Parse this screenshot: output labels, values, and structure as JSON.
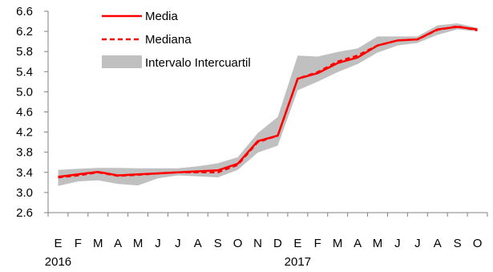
{
  "colors": {
    "series": "#ff0000",
    "band": "#c0c0c0",
    "axis": "#808080"
  },
  "legend": {
    "media": "Media",
    "mediana": "Mediana",
    "iqr": "Intervalo Intercuartil"
  },
  "chart_data": {
    "type": "line",
    "categories": [
      "E",
      "F",
      "M",
      "A",
      "M",
      "J",
      "J",
      "A",
      "S",
      "O",
      "N",
      "D",
      "E",
      "F",
      "M",
      "A",
      "M",
      "J",
      "J",
      "A",
      "S",
      "O"
    ],
    "year_labels": [
      {
        "label": "2016",
        "index": 0
      },
      {
        "label": "2017",
        "index": 12
      }
    ],
    "ylim": [
      2.6,
      6.6
    ],
    "yticks": [
      "2.6",
      "3.0",
      "3.4",
      "3.8",
      "4.2",
      "4.6",
      "5.0",
      "5.4",
      "5.8",
      "6.2",
      "6.6"
    ],
    "legend_position": "top-left",
    "grid": false,
    "series": [
      {
        "name": "Media",
        "style": "solid",
        "values": [
          3.31,
          3.36,
          3.41,
          3.34,
          3.36,
          3.38,
          3.4,
          3.42,
          3.44,
          3.57,
          4.02,
          4.13,
          5.26,
          5.37,
          5.57,
          5.68,
          5.92,
          6.02,
          6.04,
          6.24,
          6.29,
          6.24
        ]
      },
      {
        "name": "Mediana",
        "style": "dashed",
        "values": [
          3.3,
          3.34,
          3.4,
          3.33,
          3.35,
          3.38,
          3.4,
          3.4,
          3.4,
          3.55,
          4.0,
          4.13,
          5.26,
          5.39,
          5.6,
          5.72,
          5.92,
          6.02,
          6.04,
          6.23,
          6.3,
          6.22
        ]
      }
    ],
    "band": {
      "name": "Intervalo Intercuartil",
      "lower": [
        3.13,
        3.22,
        3.24,
        3.17,
        3.14,
        3.28,
        3.34,
        3.32,
        3.3,
        3.45,
        3.79,
        3.93,
        5.03,
        5.2,
        5.39,
        5.55,
        5.78,
        5.92,
        5.97,
        6.13,
        6.24,
        6.2
      ],
      "upper": [
        3.45,
        3.47,
        3.49,
        3.49,
        3.48,
        3.48,
        3.48,
        3.52,
        3.58,
        3.7,
        4.18,
        4.5,
        5.72,
        5.7,
        5.79,
        5.86,
        6.1,
        6.1,
        6.1,
        6.32,
        6.36,
        6.27
      ]
    }
  }
}
